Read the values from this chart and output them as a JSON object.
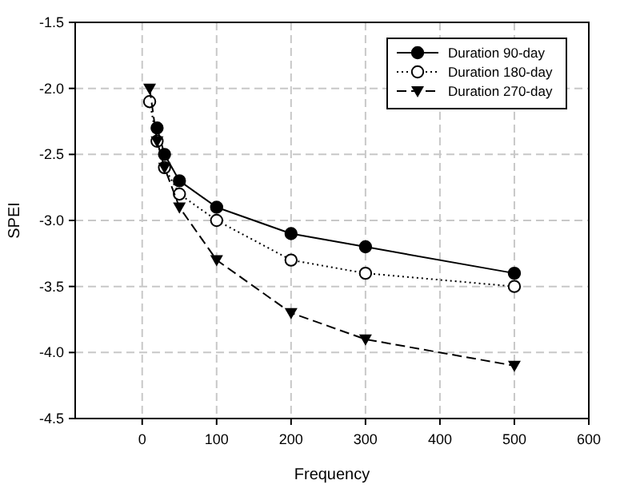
{
  "chart_data": {
    "type": "line",
    "xlabel": "Frequency",
    "ylabel": "SPEI",
    "xlim": [
      -90,
      600
    ],
    "xticks": [
      0,
      100,
      200,
      300,
      400,
      500,
      600
    ],
    "ylim": [
      -4.5,
      -1.5
    ],
    "yticks": [
      -4.5,
      {
        "value": -4,
        "label": "-4.0"
      },
      -3.5,
      {
        "value": -3,
        "label": "-3.0"
      },
      -2.5,
      {
        "value": -2,
        "label": "-2.0"
      },
      -1.5
    ],
    "grid": true,
    "legend": "top right",
    "series": [
      {
        "name": "Duration 90-day",
        "color": "#000000",
        "marker": "circle",
        "line_style": "solid",
        "x": [
          20,
          30,
          50,
          100,
          200,
          300,
          500
        ],
        "values": [
          -2.3,
          -2.5,
          -2.7,
          -2.9,
          -3.1,
          -3.2,
          -3.4
        ]
      },
      {
        "name": "Duration 180-day",
        "color": "#000000",
        "marker": "circle_open",
        "line_style": "dotted",
        "x": [
          10,
          20,
          30,
          50,
          100,
          200,
          300,
          500
        ],
        "values": [
          -2.1,
          -2.4,
          -2.6,
          -2.8,
          -3.0,
          -3.3,
          -3.4,
          -3.5
        ]
      },
      {
        "name": "Duration 270-day",
        "color": "#000000",
        "marker": "triangle",
        "line_style": "dashed",
        "x": [
          10,
          20,
          30,
          50,
          100,
          200,
          300,
          500
        ],
        "values": [
          -2.0,
          -2.4,
          -2.6,
          -2.9,
          -3.3,
          -3.7,
          -3.9,
          -4.1
        ]
      }
    ]
  }
}
